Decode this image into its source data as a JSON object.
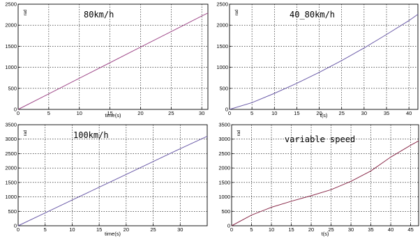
{
  "chart_data": [
    {
      "type": "line",
      "title": "80km/h",
      "xlabel": "time(s)",
      "ylabel": "rad",
      "xlim": [
        0,
        31
      ],
      "ylim": [
        0,
        2500
      ],
      "xticks": [
        "0",
        "5",
        "10",
        "15",
        "20",
        "25",
        "30"
      ],
      "yticks": [
        "0",
        "500",
        "1000",
        "1500",
        "2000",
        "2500"
      ],
      "grid": true,
      "series": [
        {
          "color": "#a04a8a",
          "x": [
            0,
            5,
            10,
            15,
            20,
            25,
            30,
            31
          ],
          "y": [
            0,
            370,
            740,
            1110,
            1480,
            1850,
            2220,
            2290
          ]
        }
      ]
    },
    {
      "type": "line",
      "title": "40_80km/h",
      "xlabel": "t(s)",
      "ylabel": "rad",
      "xlim": [
        0,
        42
      ],
      "ylim": [
        0,
        2500
      ],
      "xticks": [
        "0",
        "5",
        "10",
        "15",
        "20",
        "25",
        "30",
        "35",
        "40"
      ],
      "yticks": [
        "0",
        "500",
        "1000",
        "1500",
        "2000",
        "2500"
      ],
      "grid": true,
      "series": [
        {
          "color": "#6a5aa8",
          "x": [
            0,
            5,
            10,
            15,
            20,
            25,
            30,
            35,
            40,
            42
          ],
          "y": [
            0,
            160,
            380,
            620,
            880,
            1160,
            1460,
            1780,
            2110,
            2260
          ]
        }
      ]
    },
    {
      "type": "line",
      "title": "100km/h",
      "xlabel": "time(s)",
      "ylabel": "rad",
      "xlim": [
        0,
        35
      ],
      "ylim": [
        0,
        3500
      ],
      "xticks": [
        "0",
        "5",
        "10",
        "15",
        "20",
        "25",
        "30"
      ],
      "yticks": [
        "0",
        "500",
        "1000",
        "1500",
        "2000",
        "2500",
        "3000",
        "3500"
      ],
      "grid": true,
      "series": [
        {
          "color": "#6a5aa8",
          "x": [
            0,
            5,
            10,
            15,
            20,
            25,
            30,
            35
          ],
          "y": [
            0,
            445,
            890,
            1335,
            1780,
            2225,
            2670,
            3100
          ]
        }
      ]
    },
    {
      "type": "line",
      "title": "variable speed",
      "xlabel": "t(s)",
      "ylabel": "rad",
      "xlim": [
        0,
        47
      ],
      "ylim": [
        0,
        3500
      ],
      "xticks": [
        "0",
        "5",
        "10",
        "15",
        "20",
        "25",
        "30",
        "35",
        "40",
        "45"
      ],
      "yticks": [
        "0",
        "500",
        "1000",
        "1500",
        "2000",
        "2500",
        "3000",
        "3500"
      ],
      "grid": true,
      "series": [
        {
          "color": "#8a2a4a",
          "x": [
            0,
            5,
            10,
            15,
            20,
            25,
            30,
            35,
            40,
            45,
            47
          ],
          "y": [
            0,
            370,
            640,
            850,
            1040,
            1250,
            1540,
            1900,
            2380,
            2790,
            2940
          ]
        }
      ]
    }
  ]
}
